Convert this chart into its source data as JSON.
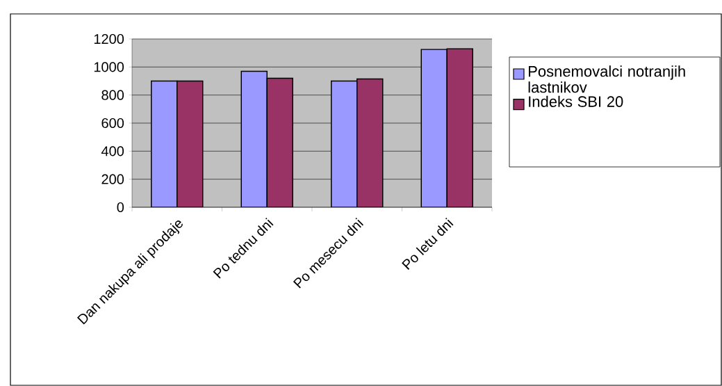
{
  "chart_data": {
    "type": "bar",
    "categories": [
      "Dan nakupa ali prodaje",
      "Po tednu dni",
      "Po mesecu dni",
      "Po letu dni"
    ],
    "series": [
      {
        "name": "Posnemovalci notranjih lastnikov",
        "color": "#9999ff",
        "values": [
          900,
          970,
          900,
          1125
        ]
      },
      {
        "name": "Indeks SBI 20",
        "color": "#993366",
        "values": [
          900,
          920,
          915,
          1130
        ]
      }
    ],
    "ylim": [
      0,
      1200
    ],
    "yticks": [
      0,
      200,
      400,
      600,
      800,
      1000,
      1200
    ],
    "grid": "y",
    "legend": "right"
  }
}
